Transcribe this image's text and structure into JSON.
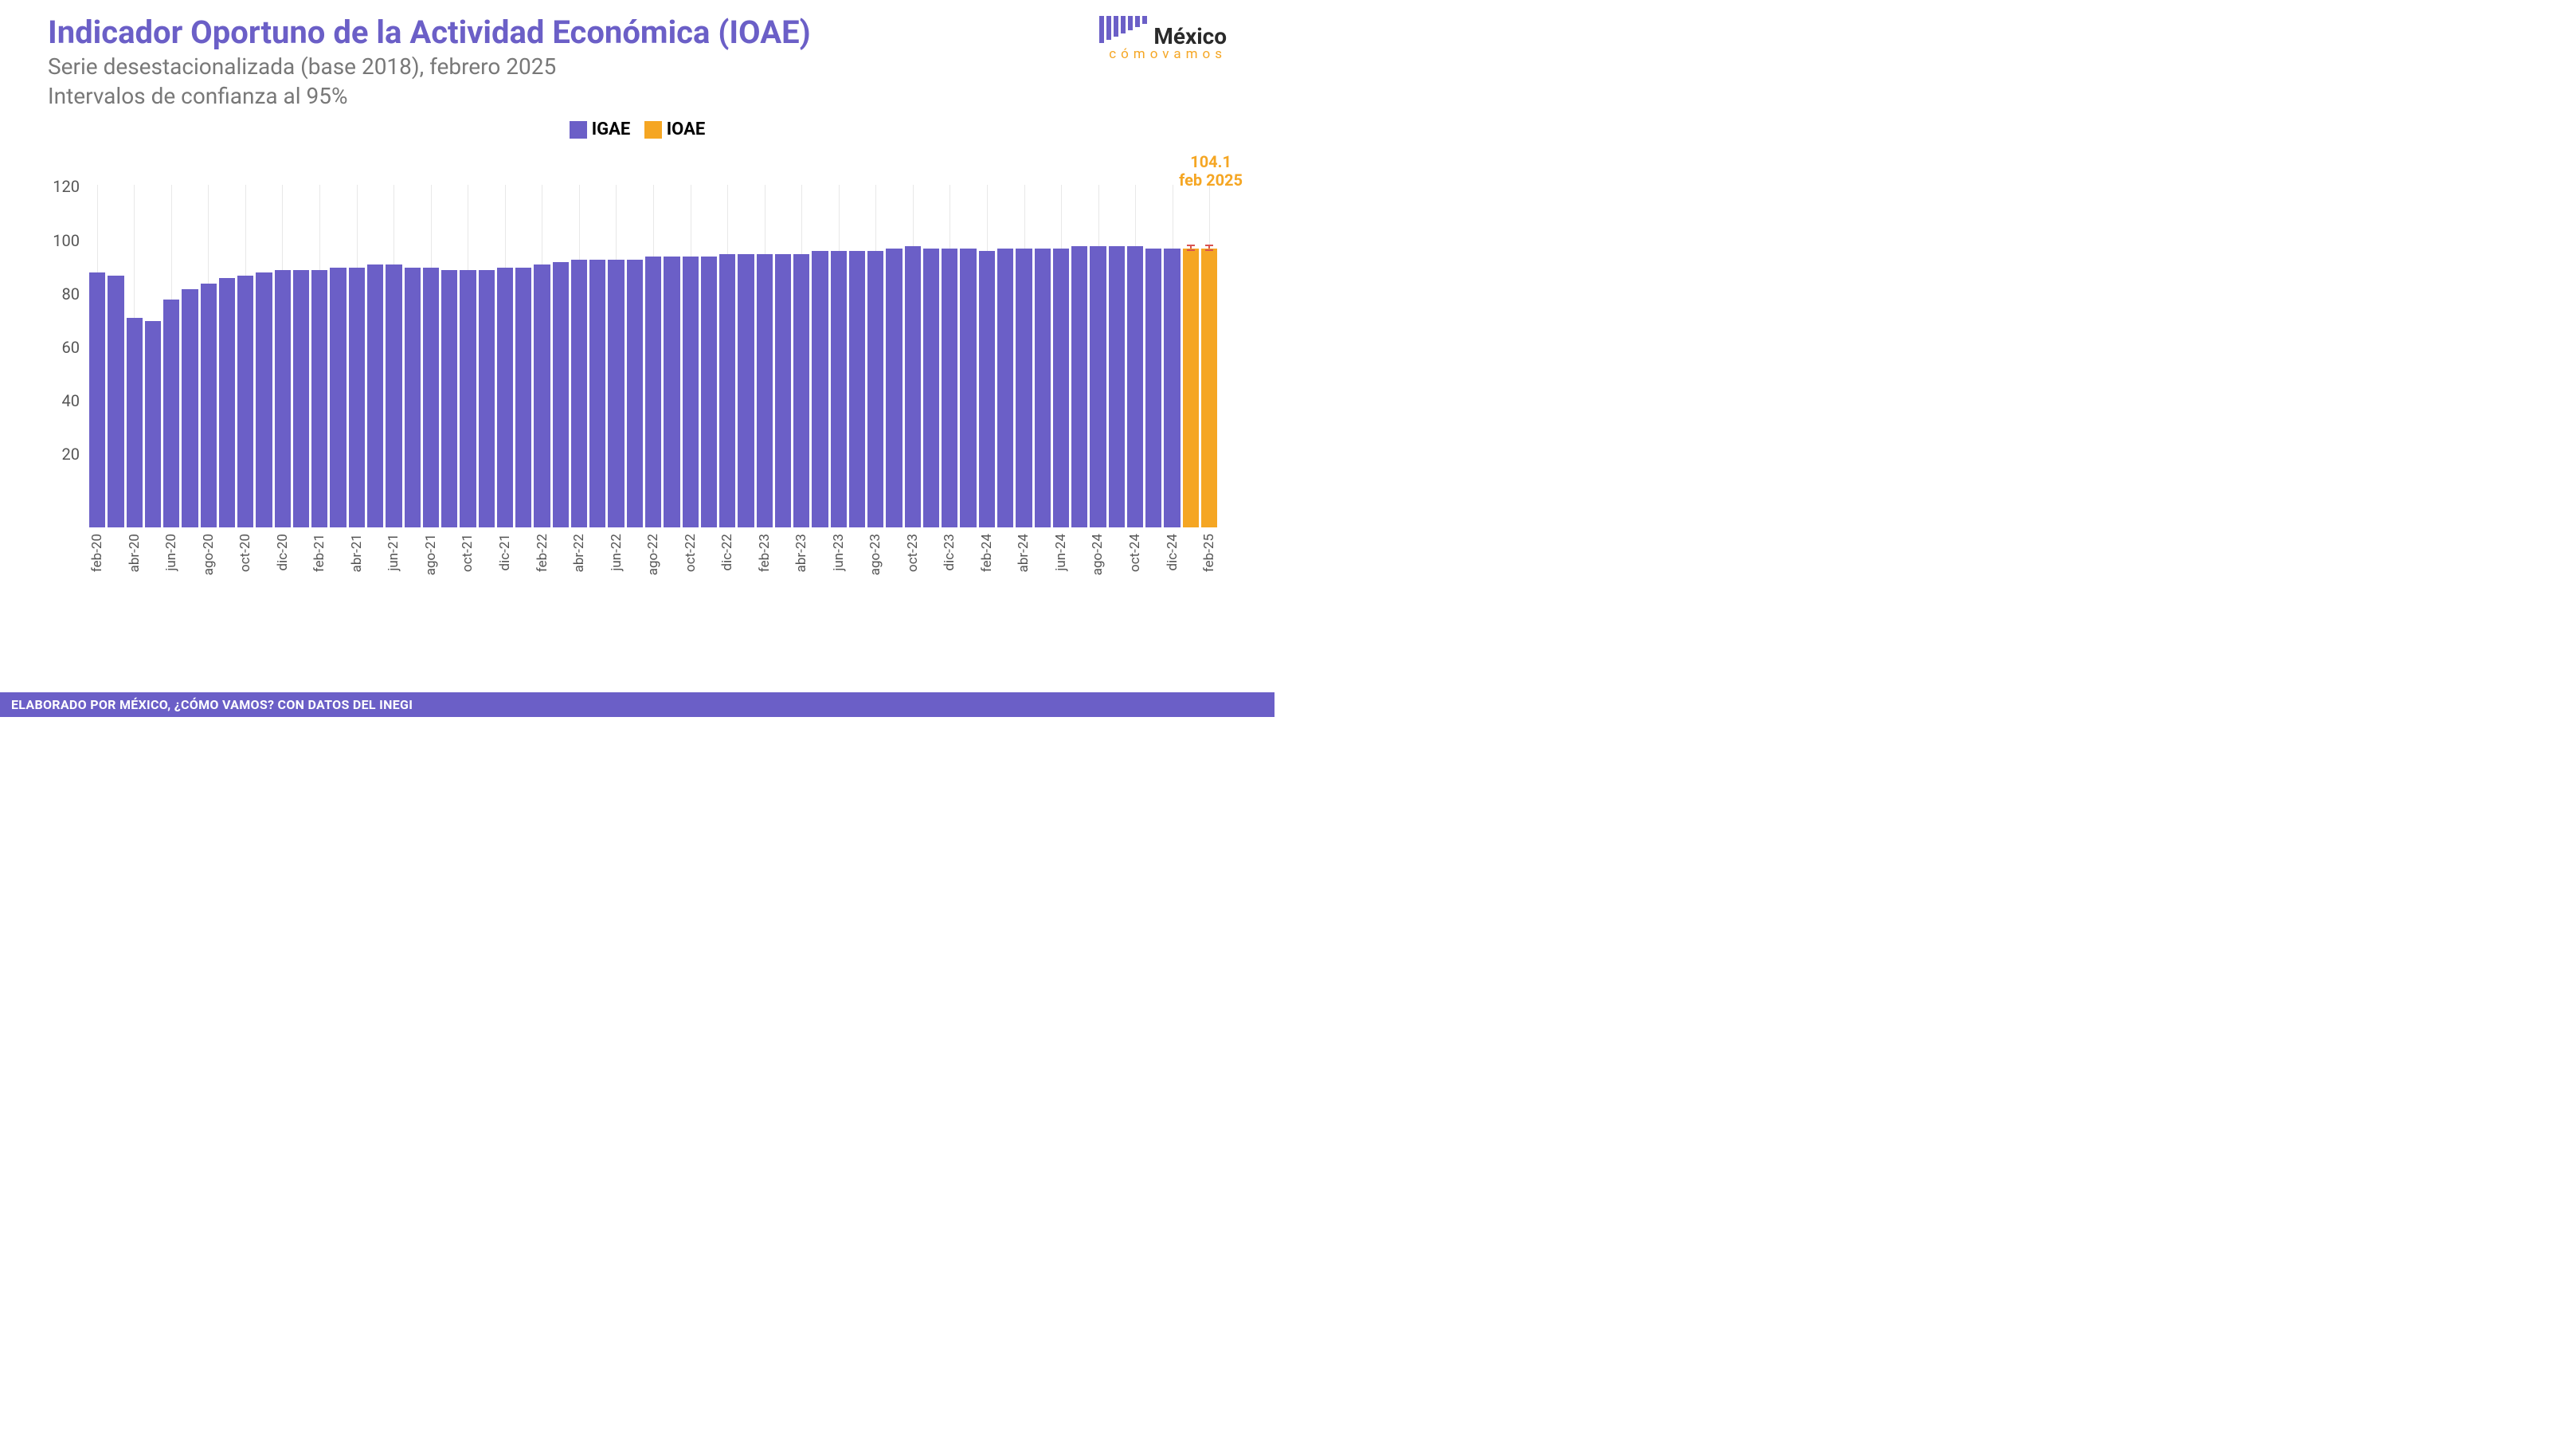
{
  "title": "Indicador Oportuno de la Actividad Económica (IOAE)",
  "subtitle_line1": "Serie desestacionalizada (base 2018), febrero 2025",
  "subtitle_line2": "Intervalos de confianza al 95%",
  "legend": {
    "igae": {
      "label": "IGAE",
      "color": "#6b5fc7"
    },
    "ioae": {
      "label": "IOAE",
      "color": "#f5a623"
    }
  },
  "logo": {
    "main": "México",
    "sub": "cómovamos",
    "bar_heights": [
      34,
      30,
      26,
      22,
      18,
      14,
      10
    ],
    "bar_color": "#6b5fc7",
    "accent_color": "#f5a623"
  },
  "footer": "ELABORADO POR MÉXICO, ¿CÓMO VAMOS? CON DATOS DEL INEGI",
  "chart": {
    "type": "bar",
    "y_axis": {
      "min": 0,
      "max": 128,
      "ticks": [
        20,
        40,
        60,
        80,
        100,
        120
      ]
    },
    "x_tick_every": 2,
    "grid_color": "#e8e8e8",
    "igae_color": "#6b5fc7",
    "ioae_color": "#f5a623",
    "error_color": "#d9534f",
    "callout": {
      "value": "104.1",
      "date": "feb 2025",
      "color": "#f5a623"
    },
    "bars": [
      {
        "label": "feb-20",
        "value": 95,
        "series": "igae"
      },
      {
        "label": "mar-20",
        "value": 94,
        "series": "igae"
      },
      {
        "label": "abr-20",
        "value": 78,
        "series": "igae"
      },
      {
        "label": "may-20",
        "value": 77,
        "series": "igae"
      },
      {
        "label": "jun-20",
        "value": 85,
        "series": "igae"
      },
      {
        "label": "jul-20",
        "value": 89,
        "series": "igae"
      },
      {
        "label": "ago-20",
        "value": 91,
        "series": "igae"
      },
      {
        "label": "sep-20",
        "value": 93,
        "series": "igae"
      },
      {
        "label": "oct-20",
        "value": 94,
        "series": "igae"
      },
      {
        "label": "nov-20",
        "value": 95,
        "series": "igae"
      },
      {
        "label": "dic-20",
        "value": 96,
        "series": "igae"
      },
      {
        "label": "ene-21",
        "value": 96,
        "series": "igae"
      },
      {
        "label": "feb-21",
        "value": 96,
        "series": "igae"
      },
      {
        "label": "mar-21",
        "value": 97,
        "series": "igae"
      },
      {
        "label": "abr-21",
        "value": 97,
        "series": "igae"
      },
      {
        "label": "may-21",
        "value": 98,
        "series": "igae"
      },
      {
        "label": "jun-21",
        "value": 98,
        "series": "igae"
      },
      {
        "label": "jul-21",
        "value": 97,
        "series": "igae"
      },
      {
        "label": "ago-21",
        "value": 97,
        "series": "igae"
      },
      {
        "label": "sep-21",
        "value": 96,
        "series": "igae"
      },
      {
        "label": "oct-21",
        "value": 96,
        "series": "igae"
      },
      {
        "label": "nov-21",
        "value": 96,
        "series": "igae"
      },
      {
        "label": "dic-21",
        "value": 97,
        "series": "igae"
      },
      {
        "label": "ene-22",
        "value": 97,
        "series": "igae"
      },
      {
        "label": "feb-22",
        "value": 98,
        "series": "igae"
      },
      {
        "label": "mar-22",
        "value": 99,
        "series": "igae"
      },
      {
        "label": "abr-22",
        "value": 100,
        "series": "igae"
      },
      {
        "label": "may-22",
        "value": 100,
        "series": "igae"
      },
      {
        "label": "jun-22",
        "value": 100,
        "series": "igae"
      },
      {
        "label": "jul-22",
        "value": 100,
        "series": "igae"
      },
      {
        "label": "ago-22",
        "value": 101,
        "series": "igae"
      },
      {
        "label": "sep-22",
        "value": 101,
        "series": "igae"
      },
      {
        "label": "oct-22",
        "value": 101,
        "series": "igae"
      },
      {
        "label": "nov-22",
        "value": 101,
        "series": "igae"
      },
      {
        "label": "dic-22",
        "value": 102,
        "series": "igae"
      },
      {
        "label": "ene-23",
        "value": 102,
        "series": "igae"
      },
      {
        "label": "feb-23",
        "value": 102,
        "series": "igae"
      },
      {
        "label": "mar-23",
        "value": 102,
        "series": "igae"
      },
      {
        "label": "abr-23",
        "value": 102,
        "series": "igae"
      },
      {
        "label": "may-23",
        "value": 103,
        "series": "igae"
      },
      {
        "label": "jun-23",
        "value": 103,
        "series": "igae"
      },
      {
        "label": "jul-23",
        "value": 103,
        "series": "igae"
      },
      {
        "label": "ago-23",
        "value": 103,
        "series": "igae"
      },
      {
        "label": "sep-23",
        "value": 104,
        "series": "igae"
      },
      {
        "label": "oct-23",
        "value": 105,
        "series": "igae"
      },
      {
        "label": "nov-23",
        "value": 104,
        "series": "igae"
      },
      {
        "label": "dic-23",
        "value": 104,
        "series": "igae"
      },
      {
        "label": "ene-24",
        "value": 104,
        "series": "igae"
      },
      {
        "label": "feb-24",
        "value": 103,
        "series": "igae"
      },
      {
        "label": "mar-24",
        "value": 104,
        "series": "igae"
      },
      {
        "label": "abr-24",
        "value": 104,
        "series": "igae"
      },
      {
        "label": "may-24",
        "value": 104,
        "series": "igae"
      },
      {
        "label": "jun-24",
        "value": 104,
        "series": "igae"
      },
      {
        "label": "jul-24",
        "value": 105,
        "series": "igae"
      },
      {
        "label": "ago-24",
        "value": 105,
        "series": "igae"
      },
      {
        "label": "sep-24",
        "value": 105,
        "series": "igae"
      },
      {
        "label": "oct-24",
        "value": 105,
        "series": "igae"
      },
      {
        "label": "nov-24",
        "value": 104,
        "series": "igae"
      },
      {
        "label": "dic-24",
        "value": 104,
        "series": "igae"
      },
      {
        "label": "ene-25",
        "value": 104,
        "series": "ioae",
        "ci": 2
      },
      {
        "label": "feb-25",
        "value": 104.1,
        "series": "ioae",
        "ci": 2
      }
    ]
  }
}
